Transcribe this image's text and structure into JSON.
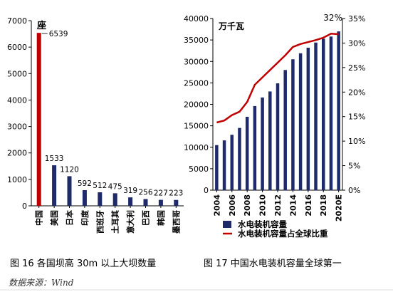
{
  "captions": {
    "left": "图 16  各国坝高 30m 以上大坝数量",
    "right": "图 17  中国水电装机容量全球第一"
  },
  "source": "数据来源：Wind",
  "colors": {
    "navy": "#1f2a6b",
    "red": "#c00000"
  },
  "chart_data": [
    {
      "type": "bar",
      "ylabel": "座",
      "ylim": [
        0,
        7000
      ],
      "yticks": [
        0,
        1000,
        2000,
        3000,
        4000,
        5000,
        6000,
        7000
      ],
      "categories": [
        "中国",
        "美国",
        "日本",
        "印度",
        "西班牙",
        "土耳其",
        "意大利",
        "巴西",
        "韩国",
        "墨西哥"
      ],
      "values": [
        6539,
        1533,
        1120,
        592,
        512,
        475,
        319,
        256,
        227,
        223
      ],
      "data_labels": [
        "6539",
        "1533",
        "1120",
        "592",
        "512",
        "475",
        "319",
        "256",
        "227",
        "223"
      ],
      "bar_colors": [
        "#c00000",
        "#1f2a6b",
        "#1f2a6b",
        "#1f2a6b",
        "#1f2a6b",
        "#1f2a6b",
        "#1f2a6b",
        "#1f2a6b",
        "#1f2a6b",
        "#1f2a6b"
      ],
      "grid": false
    },
    {
      "type": "bar+line",
      "ylabel_left": "万千瓦",
      "ylim_left": [
        0,
        40000
      ],
      "yticks_left": [
        0,
        5000,
        10000,
        15000,
        20000,
        25000,
        30000,
        35000,
        40000
      ],
      "ylim_right": [
        0,
        35
      ],
      "yticks_right": [
        "0%",
        "5%",
        "10%",
        "15%",
        "20%",
        "25%",
        "30%",
        "35%"
      ],
      "xticks": [
        "2004",
        "2006",
        "2008",
        "2010",
        "2012",
        "2014",
        "2016",
        "2018",
        "2020E"
      ],
      "x": [
        "2004",
        "2005",
        "2006",
        "2007",
        "2008",
        "2009",
        "2010",
        "2011",
        "2012",
        "2013",
        "2014",
        "2015",
        "2016",
        "2017",
        "2018",
        "2019",
        "2020E"
      ],
      "series": [
        {
          "name": "水电装机容量",
          "kind": "bar",
          "color": "#1f2a6b",
          "values": [
            10500,
            11600,
            12900,
            14500,
            17100,
            19600,
            21600,
            23000,
            24900,
            28000,
            30500,
            31900,
            33200,
            34400,
            35300,
            35800,
            37000
          ]
        },
        {
          "name": "水电装机容量占全球比重",
          "kind": "line",
          "color": "#c00000",
          "values": [
            13.8,
            14.2,
            15.3,
            16.0,
            18.0,
            21.5,
            23.0,
            24.5,
            26.0,
            27.5,
            29.2,
            29.8,
            30.2,
            30.6,
            31.1,
            31.9,
            31.8
          ]
        }
      ],
      "annotation": "32%",
      "legend": "bottom-left",
      "grid": false
    }
  ]
}
